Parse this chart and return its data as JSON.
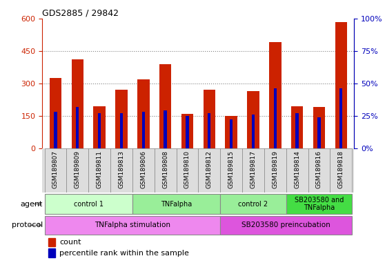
{
  "title": "GDS2885 / 29842",
  "samples": [
    "GSM189807",
    "GSM189809",
    "GSM189811",
    "GSM189813",
    "GSM189806",
    "GSM189808",
    "GSM189810",
    "GSM189812",
    "GSM189815",
    "GSM189817",
    "GSM189819",
    "GSM189814",
    "GSM189816",
    "GSM189818"
  ],
  "counts": [
    325,
    410,
    195,
    270,
    320,
    390,
    158,
    270,
    148,
    265,
    490,
    195,
    190,
    585
  ],
  "percentile_ranks": [
    28,
    32,
    27,
    27,
    28,
    29,
    25,
    27,
    22,
    26,
    46,
    27,
    24,
    46
  ],
  "ylim_left": [
    0,
    600
  ],
  "ylim_right": [
    0,
    100
  ],
  "yticks_left": [
    0,
    150,
    300,
    450,
    600
  ],
  "yticks_right": [
    0,
    25,
    50,
    75,
    100
  ],
  "bar_color": "#cc2200",
  "percentile_color": "#0000bb",
  "agent_groups": [
    {
      "label": "control 1",
      "start": 0,
      "end": 4,
      "color": "#ccffcc"
    },
    {
      "label": "TNFalpha",
      "start": 4,
      "end": 8,
      "color": "#99ee99"
    },
    {
      "label": "control 2",
      "start": 8,
      "end": 11,
      "color": "#99ee99"
    },
    {
      "label": "SB203580 and\nTNFalpha",
      "start": 11,
      "end": 14,
      "color": "#44dd44"
    }
  ],
  "protocol_groups": [
    {
      "label": "TNFalpha stimulation",
      "start": 0,
      "end": 8,
      "color": "#ee88ee"
    },
    {
      "label": "SB203580 preincubation",
      "start": 8,
      "end": 14,
      "color": "#dd55dd"
    }
  ],
  "bg_color": "#dddddd"
}
